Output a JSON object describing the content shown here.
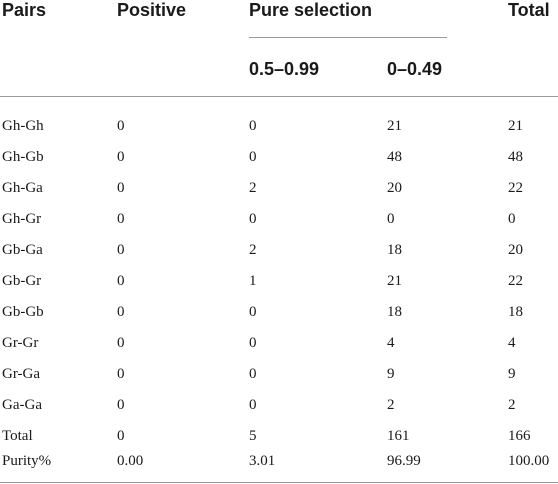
{
  "header": {
    "pairs": "Pairs",
    "positive": "Positive",
    "pure_selection": "Pure selection",
    "total": "Total",
    "range_high": "0.5–0.99",
    "range_low": "0–0.49"
  },
  "rows": [
    {
      "pair": "Gh-Gh",
      "positive": "0",
      "high": "0",
      "low": "21",
      "total": "21"
    },
    {
      "pair": "Gh-Gb",
      "positive": "0",
      "high": "0",
      "low": "48",
      "total": "48"
    },
    {
      "pair": "Gh-Ga",
      "positive": "0",
      "high": "2",
      "low": "20",
      "total": "22"
    },
    {
      "pair": "Gh-Gr",
      "positive": "0",
      "high": "0",
      "low": "0",
      "total": "0"
    },
    {
      "pair": "Gb-Ga",
      "positive": "0",
      "high": "2",
      "low": "18",
      "total": "20"
    },
    {
      "pair": "Gb-Gr",
      "positive": "0",
      "high": "1",
      "low": "21",
      "total": "22"
    },
    {
      "pair": "Gb-Gb",
      "positive": "0",
      "high": "0",
      "low": "18",
      "total": "18"
    },
    {
      "pair": "Gr-Gr",
      "positive": "0",
      "high": "0",
      "low": "4",
      "total": "4"
    },
    {
      "pair": "Gr-Ga",
      "positive": "0",
      "high": "0",
      "low": "9",
      "total": "9"
    },
    {
      "pair": "Ga-Ga",
      "positive": "0",
      "high": "0",
      "low": "2",
      "total": "2"
    },
    {
      "pair": "Total",
      "positive": "0",
      "high": "5",
      "low": "161",
      "total": "166"
    },
    {
      "pair": "Purity%",
      "positive": "0.00",
      "high": "3.01",
      "low": "96.99",
      "total": "100.00"
    }
  ]
}
